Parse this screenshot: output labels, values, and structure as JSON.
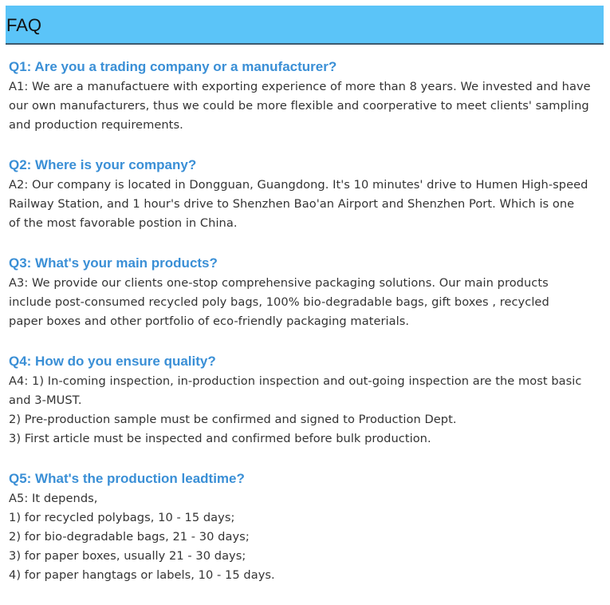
{
  "header": {
    "title": "FAQ"
  },
  "colors": {
    "header_bg": "#5bc4f8",
    "question": "#3a8fd6",
    "answer": "#333333"
  },
  "faq": [
    {
      "question": "Q1: Are you a trading company or a manufacturer?",
      "answer_lines": [
        "A1: We are a manufactuere with exporting experience of more than 8 years. We invested and have",
        "our own manufacturers, thus we could be more flexible and coorperative to meet clients' sampling",
        "and production requirements."
      ]
    },
    {
      "question": "Q2: Where is your company?",
      "answer_lines": [
        "A2: Our company is located in Dongguan, Guangdong. It's 10 minutes' drive to Humen High-speed",
        "Railway Station, and 1 hour's drive to Shenzhen Bao'an Airport and Shenzhen Port. Which is one",
        "of the most favorable postion in China."
      ]
    },
    {
      "question": "Q3: What's your main products?",
      "answer_lines": [
        "A3: We provide our clients one-stop comprehensive packaging solutions. Our main products",
        "include post-consumed recycled poly bags, 100% bio-degradable bags, gift boxes , recycled",
        "paper boxes and other portfolio of eco-friendly packaging materials."
      ]
    },
    {
      "question": "Q4: How do you ensure quality?",
      "answer_lines": [
        "A4: 1) In-coming inspection, in-production inspection and out-going inspection are the most basic",
        "and 3-MUST.",
        "2) Pre-production sample must be confirmed and signed to Production Dept.",
        "3) First article must be inspected and confirmed before bulk production."
      ]
    },
    {
      "question": "Q5: What's the production leadtime?",
      "answer_lines": [
        "A5: It depends,",
        "1) for recycled polybags, 10 - 15 days;",
        "2) for bio-degradable bags, 21 - 30 days;",
        "3) for paper boxes, usually 21 - 30 days;",
        "4) for paper hangtags or labels, 10 - 15 days."
      ]
    }
  ]
}
